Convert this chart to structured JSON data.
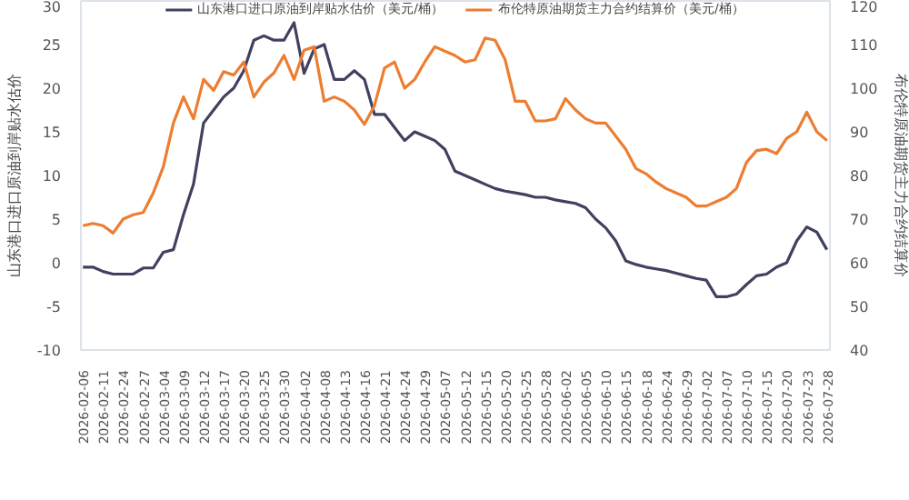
{
  "chart_data": {
    "type": "line",
    "categories": [
      "2026-02-06",
      null,
      "2026-02-11",
      null,
      "2026-02-24",
      null,
      "2026-02-27",
      null,
      "2026-03-04",
      null,
      "2026-03-09",
      null,
      "2026-03-12",
      null,
      "2026-03-17",
      null,
      "2026-03-20",
      null,
      "2026-03-25",
      null,
      "2026-03-30",
      null,
      "2026-04-02",
      null,
      "2026-04-08",
      null,
      "2026-04-13",
      null,
      "2026-04-16",
      null,
      "2026-04-21",
      null,
      "2026-04-24",
      null,
      "2026-04-29",
      null,
      "2026-05-07",
      null,
      "2026-05-12",
      null,
      "2026-05-15",
      null,
      "2026-05-20",
      null,
      "2026-05-25",
      null,
      "2026-05-28",
      null,
      "2026-06-02",
      null,
      "2026-06-05",
      null,
      "2026-06-10",
      null,
      "2026-06-15",
      null,
      "2026-06-18",
      null,
      "2026-06-24",
      null,
      "2026-06-29",
      null,
      "2026-07-02",
      null,
      "2026-07-07",
      null,
      "2026-07-10",
      null,
      "2026-07-15",
      null,
      "2026-07-20",
      null,
      "2026-07-23",
      null,
      "2026-07-28"
    ],
    "ylabel": "山东港口进口原油到岸贴水估价",
    "y2label": "布伦特原油期货主力合约结算价",
    "ylim": [
      -10,
      30
    ],
    "yticks": [
      -10,
      -5,
      0,
      5,
      10,
      15,
      20,
      25,
      30
    ],
    "y2lim": [
      40,
      120
    ],
    "y2ticks": [
      40,
      50,
      60,
      70,
      80,
      90,
      100,
      110,
      120
    ],
    "grid": false,
    "legend": "top",
    "marker": "none",
    "line_style": "solid",
    "series": [
      {
        "name": "山东港口进口原油到岸贴水估价（美元/桶）",
        "color": "#404060",
        "values": [
          -0.5,
          -0.5,
          -1.0,
          -1.3,
          -1.3,
          -1.3,
          -0.6,
          -0.6,
          1.2,
          1.5,
          5.5,
          9,
          16,
          17.5,
          19,
          20,
          22,
          25.5,
          26,
          25.5,
          25.5,
          27.5,
          21.7,
          24.5,
          25,
          21,
          21,
          22,
          21,
          17,
          17,
          15.5,
          14,
          15,
          14.5,
          14,
          13,
          10.5,
          10,
          9.5,
          9,
          8.5,
          8.2,
          8,
          7.8,
          7.5,
          7.5,
          7.2,
          7,
          6.8,
          6.3,
          5,
          4,
          2.5,
          0.2,
          -0.2,
          -0.5,
          -0.7,
          -0.9,
          -1.2,
          -1.5,
          -1.8,
          -2.0,
          -3.9,
          -3.9,
          -3.6,
          -2.5,
          -1.5,
          -1.3,
          -0.5,
          0,
          2.5,
          4.1,
          3.5,
          1.5
        ]
      },
      {
        "name": "布伦特原油期货主力合约结算价（美元/桶）",
        "color": "#ed7d31",
        "axis": "y2",
        "values": [
          68.5,
          69,
          68.5,
          66.8,
          70,
          71,
          71.5,
          76,
          82,
          92,
          98,
          93,
          102,
          99.5,
          103.8,
          103,
          106,
          98,
          101.4,
          103.5,
          107.5,
          102,
          108.7,
          109.5,
          97,
          98,
          97,
          95,
          91.7,
          96,
          104.6,
          106,
          100,
          102,
          106,
          109.5,
          108.5,
          107.5,
          106,
          106.5,
          111.5,
          111,
          106.5,
          97,
          97,
          92.5,
          92.5,
          93,
          97.6,
          95,
          93,
          92,
          92,
          89,
          86,
          81.6,
          80.4,
          78.5,
          77,
          76,
          75,
          73,
          73,
          74,
          75,
          77,
          83,
          85.7,
          86,
          85,
          88.5,
          90,
          94.5,
          90,
          88
        ]
      }
    ]
  }
}
